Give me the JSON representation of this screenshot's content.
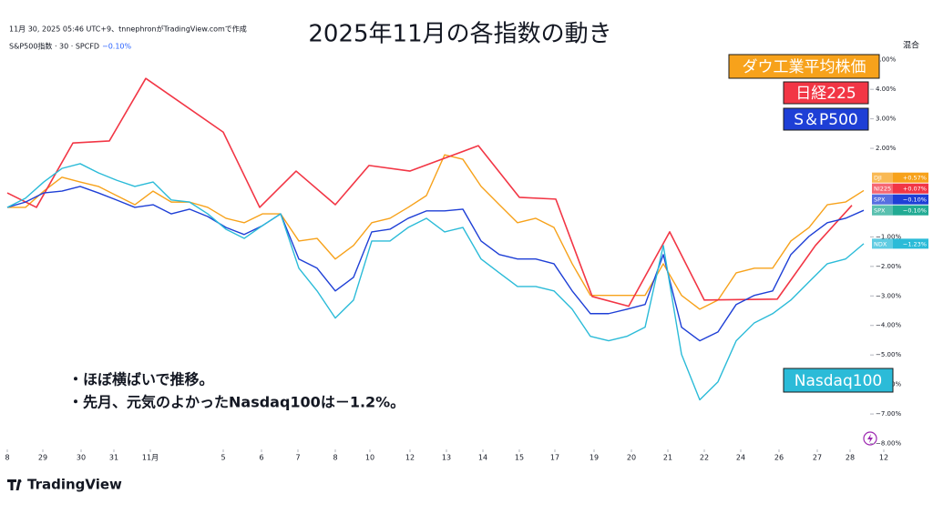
{
  "chart_data": {
    "type": "line",
    "title": "2025年11月の各指数の動き",
    "credit": "11月 30, 2025 05:46 UTC+9、tnnephronがTradingView.comで作成",
    "symbol_info": "S&P500指数 · 30 · SPCFD",
    "symbol_change": "−0.10%",
    "mode": "混合",
    "annotations": [
      "・ほぼ横ばいで推移。",
      "・先月、元気のよかったNasdaq100は－1.2%。"
    ],
    "brand": "TradingView",
    "x": [
      0,
      0.5,
      1,
      1.5,
      2,
      2.5,
      3,
      3.5,
      4,
      4.5,
      5,
      5.5,
      6,
      6.5,
      7,
      7.5,
      8,
      8.5,
      9,
      9.5,
      10,
      10.5,
      11,
      11.5,
      12,
      12.5,
      13,
      13.5,
      14,
      14.5,
      15,
      15.5,
      16,
      16.5,
      17,
      17.5,
      18,
      18.5,
      19,
      19.5,
      20,
      20.5,
      21,
      21.5,
      22,
      22.5,
      23,
      23.5
    ],
    "xlim": [
      0,
      24.2
    ],
    "xticks": [
      {
        "value": 0,
        "label": "8"
      },
      {
        "value": 0.975,
        "label": "29"
      },
      {
        "value": 2.025,
        "label": "30"
      },
      {
        "value": 2.925,
        "label": "31"
      },
      {
        "value": 3.925,
        "label": "11月"
      },
      {
        "value": 5.925,
        "label": "5"
      },
      {
        "value": 6.975,
        "label": "6"
      },
      {
        "value": 7.975,
        "label": "7"
      },
      {
        "value": 9,
        "label": "8"
      },
      {
        "value": 9.95,
        "label": "10"
      },
      {
        "value": 11.05,
        "label": "12"
      },
      {
        "value": 12.05,
        "label": "13"
      },
      {
        "value": 13.05,
        "label": "14"
      },
      {
        "value": 14.05,
        "label": "15"
      },
      {
        "value": 15.025,
        "label": "17"
      },
      {
        "value": 16.1,
        "label": "19"
      },
      {
        "value": 17.125,
        "label": "20"
      },
      {
        "value": 18.125,
        "label": "21"
      },
      {
        "value": 19.125,
        "label": "22"
      },
      {
        "value": 20.125,
        "label": "24"
      },
      {
        "value": 21.175,
        "label": "26"
      },
      {
        "value": 22.225,
        "label": "27"
      },
      {
        "value": 23.125,
        "label": "28"
      },
      {
        "value": 24.05,
        "label": "12"
      }
    ],
    "ylim": [
      -8.2,
      5.3
    ],
    "yticks": [
      {
        "value": 5,
        "label": "5.00%"
      },
      {
        "value": 4,
        "label": "4.00%"
      },
      {
        "value": 3,
        "label": "3.00%"
      },
      {
        "value": 2,
        "label": "2.00%"
      },
      {
        "value": -1,
        "label": "−1.00%"
      },
      {
        "value": -2,
        "label": "−2.00%"
      },
      {
        "value": -3,
        "label": "−3.00%"
      },
      {
        "value": -4,
        "label": "−4.00%"
      },
      {
        "value": -5,
        "label": "−5.00%"
      },
      {
        "value": -6,
        "label": "−6.00%"
      },
      {
        "value": -7,
        "label": "−7.00%"
      },
      {
        "value": -8,
        "label": "−8.00%"
      }
    ],
    "series": [
      {
        "name": "ダウ工業平均株価",
        "color": "#f7a21b",
        "values": [
          0,
          0,
          0.55,
          1.02,
          0.86,
          0.71,
          0.4,
          0.09,
          0.55,
          0.18,
          0.18,
          0,
          -0.37,
          -0.52,
          -0.22,
          -0.22,
          -1.14,
          -1.05,
          -1.75,
          -1.29,
          -0.52,
          -0.37,
          0,
          0.4,
          1.78,
          1.63,
          0.71,
          0.09,
          -0.52,
          -0.37,
          -0.68,
          -1.91,
          -2.98,
          -2.98,
          -2.98,
          -2.98,
          -1.91,
          -2.98,
          -3.45,
          -3.14,
          -2.22,
          -2.06,
          -2.06,
          -1.14,
          -0.68,
          0.09,
          0.18,
          0.57
        ]
      },
      {
        "name": "日経225",
        "color": "#f23645",
        "x": [
          0,
          0.8,
          1.8,
          2.8,
          3.8,
          5.925,
          6.925,
          7.925,
          9,
          9.925,
          11.05,
          12.925,
          14.05,
          15.05,
          16.05,
          17.05,
          18.175,
          19.125,
          21.125,
          22.175,
          23.175
        ],
        "values": [
          0.49,
          0,
          2.18,
          2.25,
          4.37,
          2.55,
          0,
          1.23,
          0.09,
          1.42,
          1.23,
          2.09,
          0.34,
          0.28,
          -3.02,
          -3.35,
          -0.83,
          -3.14,
          -3.11,
          -1.29,
          0.07
        ]
      },
      {
        "name": "S＆P500",
        "color": "#1e3fd6",
        "values": [
          0,
          0.18,
          0.49,
          0.55,
          0.71,
          0.49,
          0.25,
          0,
          0.09,
          -0.22,
          -0.06,
          -0.31,
          -0.68,
          -0.92,
          -0.62,
          -0.22,
          -1.75,
          -2.06,
          -2.83,
          -2.37,
          -0.83,
          -0.74,
          -0.37,
          -0.12,
          -0.12,
          -0.06,
          -1.14,
          -1.6,
          -1.75,
          -1.75,
          -1.91,
          -2.83,
          -3.6,
          -3.6,
          -3.45,
          -3.29,
          -1.6,
          -4.06,
          -4.52,
          -4.22,
          -3.29,
          -2.98,
          -2.83,
          -1.6,
          -0.98,
          -0.52,
          -0.37,
          -0.1
        ]
      },
      {
        "name": "Nasdaq100",
        "color": "#2bbbd8",
        "values": [
          0,
          0.31,
          0.86,
          1.32,
          1.48,
          1.17,
          0.92,
          0.71,
          0.86,
          0.25,
          0.18,
          -0.22,
          -0.74,
          -1.05,
          -0.62,
          -0.22,
          -2.06,
          -2.83,
          -3.75,
          -3.14,
          -1.14,
          -1.14,
          -0.68,
          -0.37,
          -0.83,
          -0.68,
          -1.75,
          -2.22,
          -2.68,
          -2.68,
          -2.83,
          -3.45,
          -4.37,
          -4.52,
          -4.37,
          -4.06,
          -1.29,
          -4.98,
          -6.52,
          -5.91,
          -4.52,
          -3.91,
          -3.6,
          -3.14,
          -2.52,
          -1.91,
          -1.75,
          -1.23
        ]
      }
    ],
    "price_tags": [
      {
        "symbol": "DJI",
        "value": 0.57,
        "label": "+0.57%",
        "color": "#f7a21b"
      },
      {
        "symbol": "NI225",
        "value": 0.07,
        "label": "+0.07%",
        "color": "#f23645"
      },
      {
        "symbol": "SPX",
        "value": -0.1,
        "label": "−0.10%",
        "color": "#1e3fd6"
      },
      {
        "symbol": "SPX",
        "value": -0.1,
        "label": "−0.10%",
        "color": "#22ab94"
      },
      {
        "symbol": "NDX",
        "value": -1.23,
        "label": "−1.23%",
        "color": "#2bbbd8"
      }
    ]
  }
}
